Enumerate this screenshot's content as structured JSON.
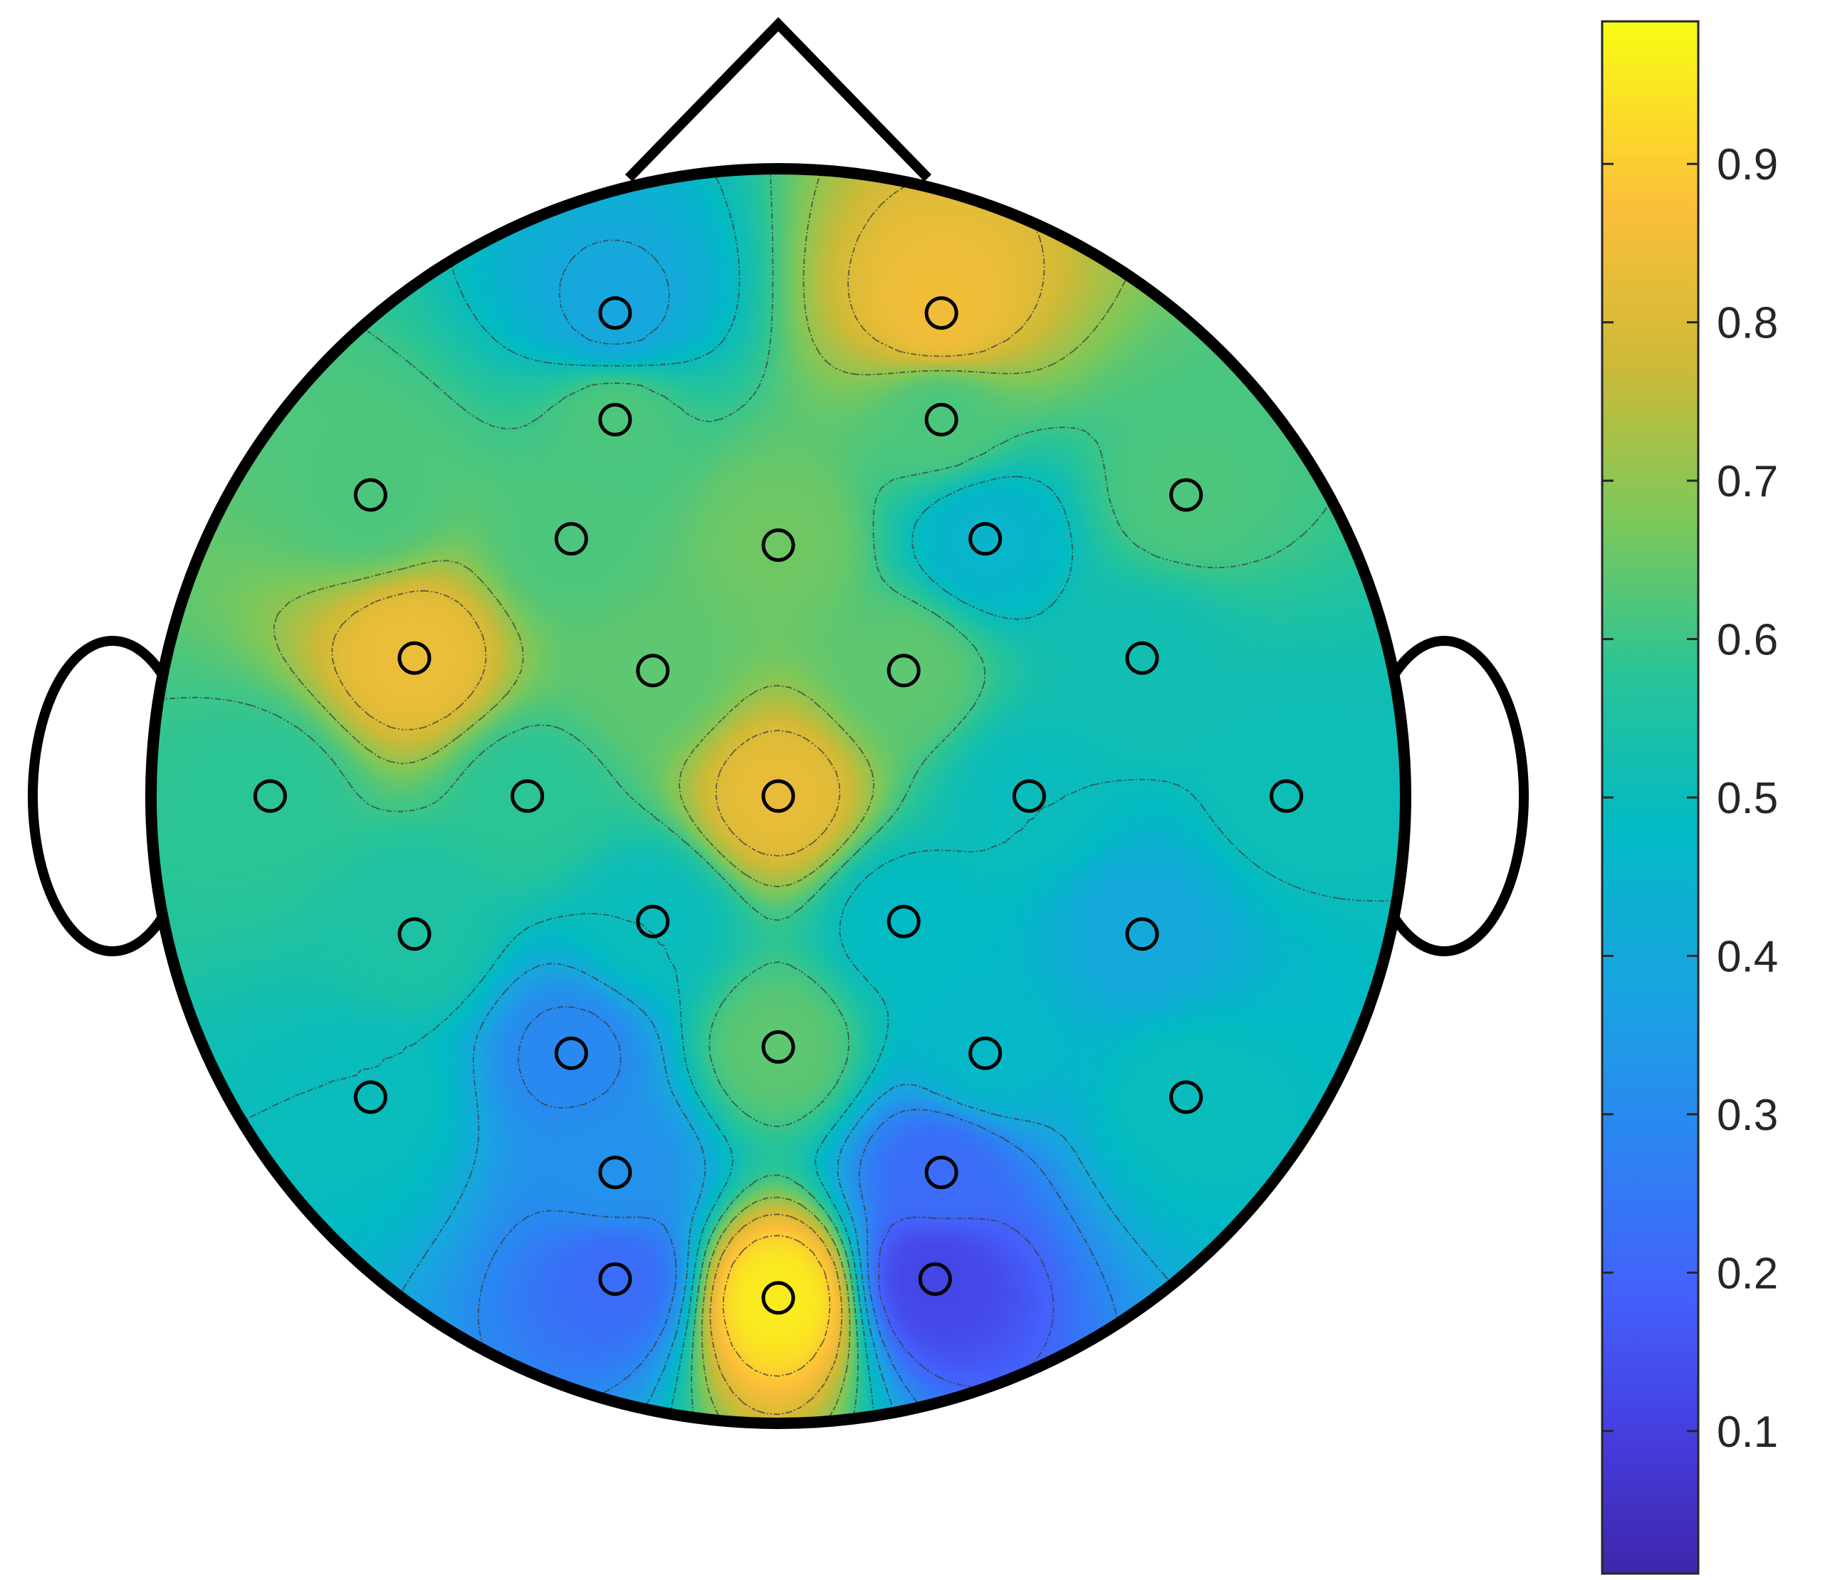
{
  "chart_data": {
    "type": "heatmap",
    "subtype": "eeg-topographic-map",
    "title": "",
    "colormap": "parula",
    "colorbar": {
      "range": [
        0.01,
        0.99
      ],
      "ticks": [
        0.1,
        0.2,
        0.3,
        0.4,
        0.5,
        0.6,
        0.7,
        0.8,
        0.9
      ],
      "tick_labels": [
        "0.1",
        "0.2",
        "0.3",
        "0.4",
        "0.5",
        "0.6",
        "0.7",
        "0.8",
        "0.9"
      ],
      "placement": "right"
    },
    "contour_lines": true,
    "electrode_marker": "circle",
    "electrodes": [
      {
        "x": -0.26,
        "y": 0.77,
        "value": 0.39
      },
      {
        "x": 0.26,
        "y": 0.77,
        "value": 0.85
      },
      {
        "x": -0.26,
        "y": 0.6,
        "value": 0.62
      },
      {
        "x": 0.26,
        "y": 0.6,
        "value": 0.62
      },
      {
        "x": -0.65,
        "y": 0.48,
        "value": 0.62
      },
      {
        "x": -0.33,
        "y": 0.41,
        "value": 0.62
      },
      {
        "x": 0.0,
        "y": 0.4,
        "value": 0.66
      },
      {
        "x": 0.33,
        "y": 0.41,
        "value": 0.45
      },
      {
        "x": 0.65,
        "y": 0.48,
        "value": 0.62
      },
      {
        "x": -0.58,
        "y": 0.22,
        "value": 0.84
      },
      {
        "x": -0.2,
        "y": 0.2,
        "value": 0.64
      },
      {
        "x": 0.2,
        "y": 0.2,
        "value": 0.64
      },
      {
        "x": 0.58,
        "y": 0.22,
        "value": 0.52
      },
      {
        "x": -0.81,
        "y": 0.0,
        "value": 0.58
      },
      {
        "x": -0.4,
        "y": 0.0,
        "value": 0.58
      },
      {
        "x": 0.0,
        "y": 0.0,
        "value": 0.83
      },
      {
        "x": 0.4,
        "y": 0.0,
        "value": 0.5
      },
      {
        "x": 0.81,
        "y": 0.0,
        "value": 0.51
      },
      {
        "x": -0.58,
        "y": -0.22,
        "value": 0.55
      },
      {
        "x": -0.2,
        "y": -0.2,
        "value": 0.5
      },
      {
        "x": 0.2,
        "y": -0.2,
        "value": 0.48
      },
      {
        "x": 0.58,
        "y": -0.22,
        "value": 0.4
      },
      {
        "x": -0.33,
        "y": -0.41,
        "value": 0.29
      },
      {
        "x": 0.0,
        "y": -0.4,
        "value": 0.64
      },
      {
        "x": 0.33,
        "y": -0.41,
        "value": 0.47
      },
      {
        "x": -0.65,
        "y": -0.48,
        "value": 0.5
      },
      {
        "x": 0.65,
        "y": -0.48,
        "value": 0.5
      },
      {
        "x": -0.26,
        "y": -0.6,
        "value": 0.32
      },
      {
        "x": 0.26,
        "y": -0.6,
        "value": 0.22
      },
      {
        "x": -0.26,
        "y": -0.77,
        "value": 0.22
      },
      {
        "x": 0.0,
        "y": -0.8,
        "value": 0.96
      },
      {
        "x": 0.25,
        "y": -0.77,
        "value": 0.12
      }
    ]
  }
}
